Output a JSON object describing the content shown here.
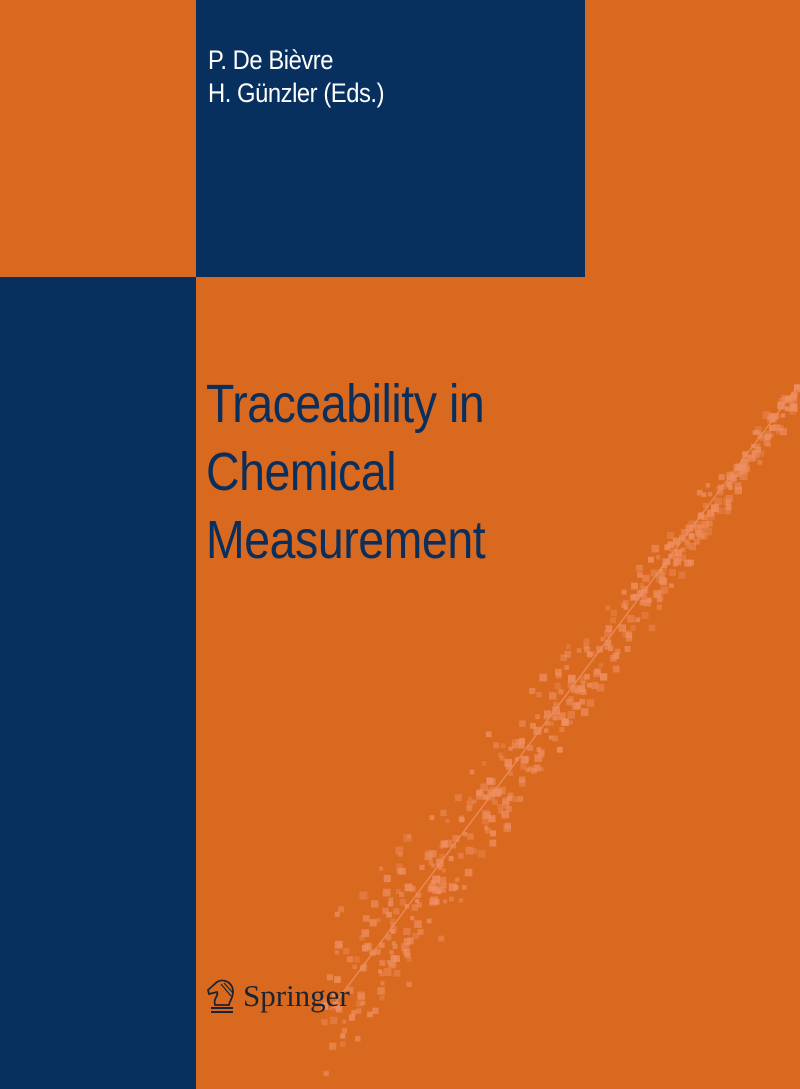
{
  "cover": {
    "editors": [
      "P. De Bièvre",
      "H. Günzler (Eds.)"
    ],
    "title_lines": [
      "Traceability in",
      "Chemical",
      "Measurement"
    ],
    "publisher": "Springer",
    "colors": {
      "background": "#d9691f",
      "navy": "#07305e",
      "title": "#0b2f5c",
      "scatter": "#ee8f63"
    }
  }
}
